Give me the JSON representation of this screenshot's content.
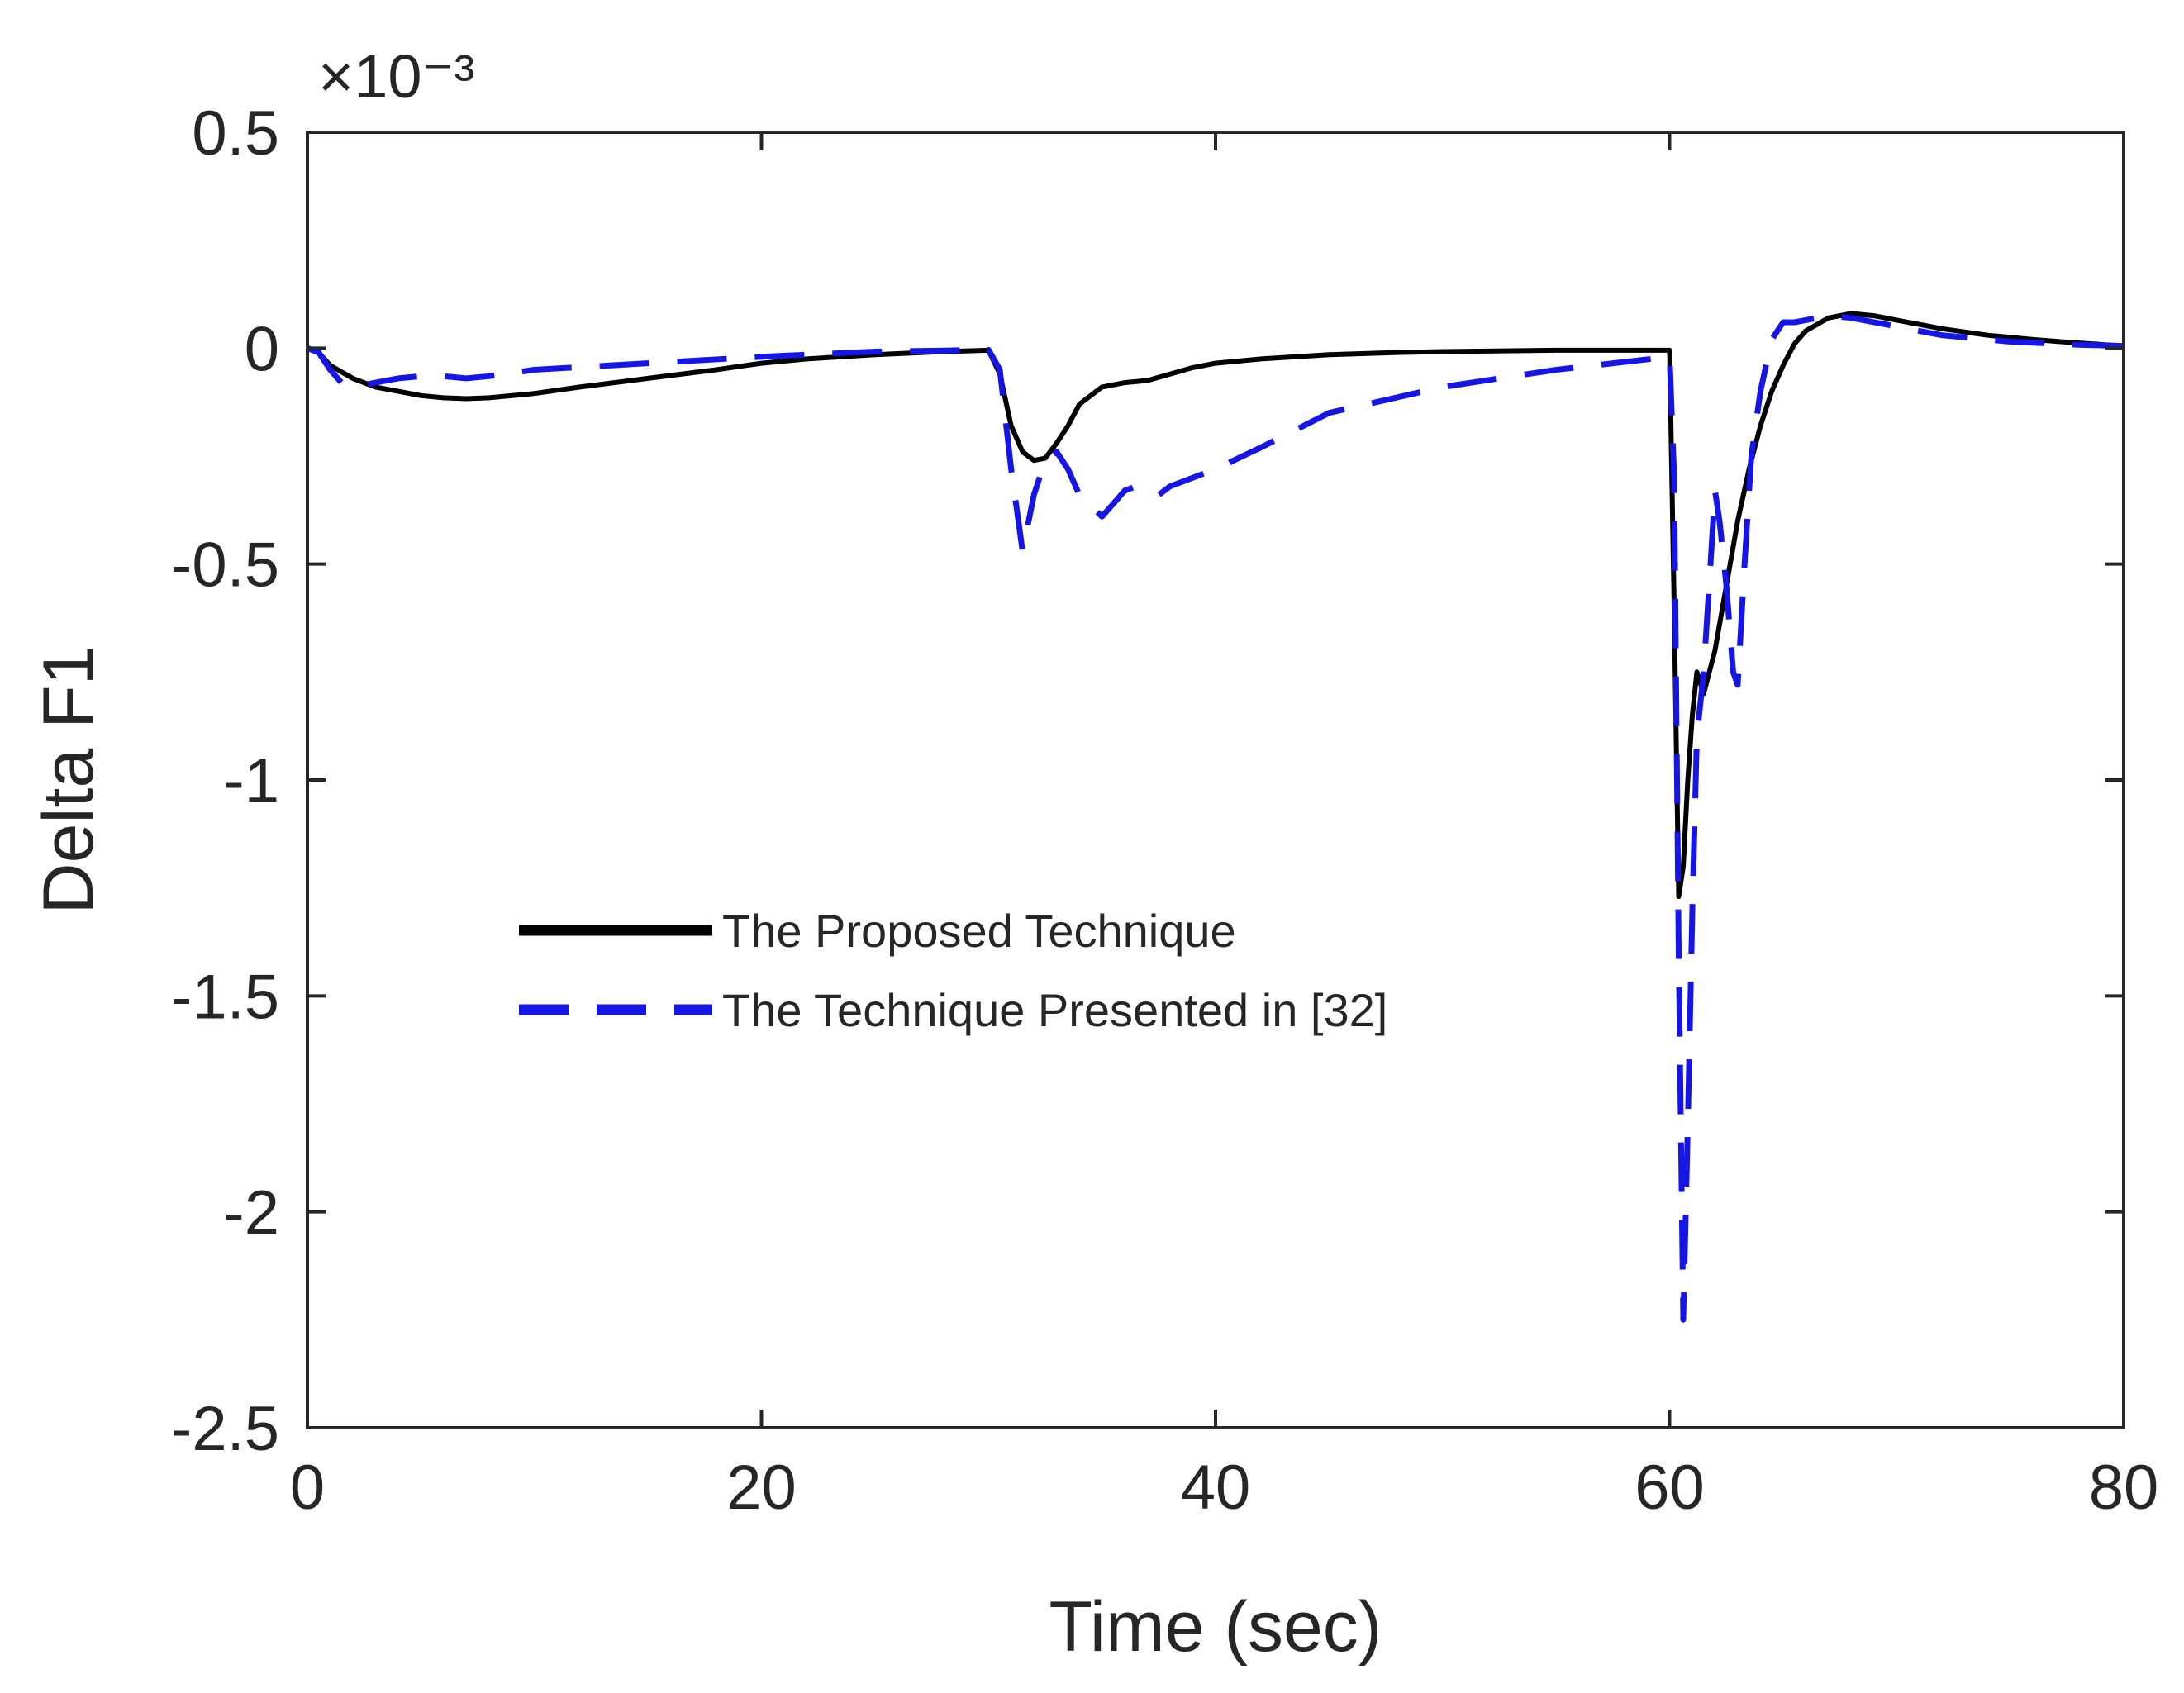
{
  "chart_data": {
    "type": "line",
    "title": "",
    "xlabel": "Time (sec)",
    "ylabel": "Delta F1",
    "y_exponent_label": "×10⁻³",
    "xlim": [
      0,
      80
    ],
    "ylim": [
      -2.5,
      0.5
    ],
    "x_ticks": [
      0,
      20,
      40,
      60,
      80
    ],
    "x_tick_labels": [
      "0",
      "20",
      "40",
      "60",
      "80"
    ],
    "y_ticks": [
      0.5,
      0,
      -0.5,
      -1,
      -1.5,
      -2,
      -2.5
    ],
    "y_tick_labels": [
      "0.5",
      "0",
      "-0.5",
      "-1",
      "-1.5",
      "-2",
      "-2.5"
    ],
    "grid": false,
    "legend_position": "center-left",
    "series": [
      {
        "name": "The Proposed Technique",
        "color": "#000000",
        "style": "solid",
        "x": [
          0,
          0.5,
          1,
          2,
          3,
          4,
          5,
          6,
          7,
          8,
          10,
          12,
          15,
          18,
          20,
          22,
          25,
          28,
          30,
          30.5,
          31,
          31.5,
          32,
          32.5,
          33,
          33.5,
          34,
          35,
          36,
          37,
          38,
          39,
          40,
          42,
          45,
          48,
          50,
          55,
          60,
          60.2,
          60.4,
          60.6,
          60.8,
          61,
          61.2,
          61.5,
          62,
          62.5,
          63,
          63.5,
          64,
          64.5,
          65,
          65.5,
          66,
          67,
          68,
          69,
          70,
          72,
          74,
          76,
          78,
          80
        ],
        "y": [
          0,
          -0.01,
          -0.04,
          -0.07,
          -0.09,
          -0.1,
          -0.11,
          -0.115,
          -0.117,
          -0.115,
          -0.105,
          -0.09,
          -0.07,
          -0.05,
          -0.035,
          -0.025,
          -0.015,
          -0.008,
          -0.005,
          -0.06,
          -0.18,
          -0.24,
          -0.26,
          -0.255,
          -0.22,
          -0.18,
          -0.13,
          -0.09,
          -0.08,
          -0.075,
          -0.06,
          -0.045,
          -0.035,
          -0.025,
          -0.015,
          -0.01,
          -0.008,
          -0.005,
          -0.005,
          -0.6,
          -1.27,
          -1.2,
          -1.0,
          -0.85,
          -0.75,
          -0.8,
          -0.7,
          -0.55,
          -0.4,
          -0.28,
          -0.18,
          -0.1,
          -0.04,
          0.01,
          0.04,
          0.07,
          0.08,
          0.075,
          0.065,
          0.045,
          0.03,
          0.02,
          0.012,
          0.005
        ]
      },
      {
        "name": "The Technique Presented in [32]",
        "color": "#1515e8",
        "style": "dashed",
        "x": [
          0,
          0.5,
          1,
          1.5,
          2,
          3,
          4,
          5,
          6,
          7,
          8,
          10,
          15,
          20,
          25,
          30,
          30.5,
          31,
          31.5,
          32,
          32.5,
          33,
          33.5,
          34,
          35,
          35.5,
          36,
          36.5,
          37,
          37.5,
          38,
          40,
          42,
          45,
          50,
          55,
          60,
          60.2,
          60.4,
          60.6,
          60.8,
          61,
          61.2,
          61.5,
          61.8,
          62,
          62.2,
          62.5,
          62.8,
          63,
          63.3,
          63.6,
          64,
          64.5,
          65,
          65.5,
          66,
          67,
          68,
          70,
          72,
          75,
          78,
          80
        ],
        "y": [
          0,
          -0.01,
          -0.05,
          -0.08,
          -0.09,
          -0.08,
          -0.07,
          -0.065,
          -0.065,
          -0.07,
          -0.065,
          -0.05,
          -0.035,
          -0.02,
          -0.008,
          -0.004,
          -0.05,
          -0.28,
          -0.47,
          -0.34,
          -0.26,
          -0.24,
          -0.28,
          -0.34,
          -0.39,
          -0.36,
          -0.33,
          -0.32,
          -0.33,
          -0.34,
          -0.32,
          -0.28,
          -0.23,
          -0.15,
          -0.09,
          -0.05,
          -0.02,
          -0.3,
          -1.4,
          -2.25,
          -1.8,
          -1.3,
          -0.9,
          -0.75,
          -0.5,
          -0.33,
          -0.4,
          -0.55,
          -0.75,
          -0.78,
          -0.5,
          -0.25,
          -0.1,
          0.02,
          0.06,
          0.06,
          0.065,
          0.075,
          0.07,
          0.05,
          0.03,
          0.015,
          0.008,
          0.005
        ]
      }
    ]
  }
}
